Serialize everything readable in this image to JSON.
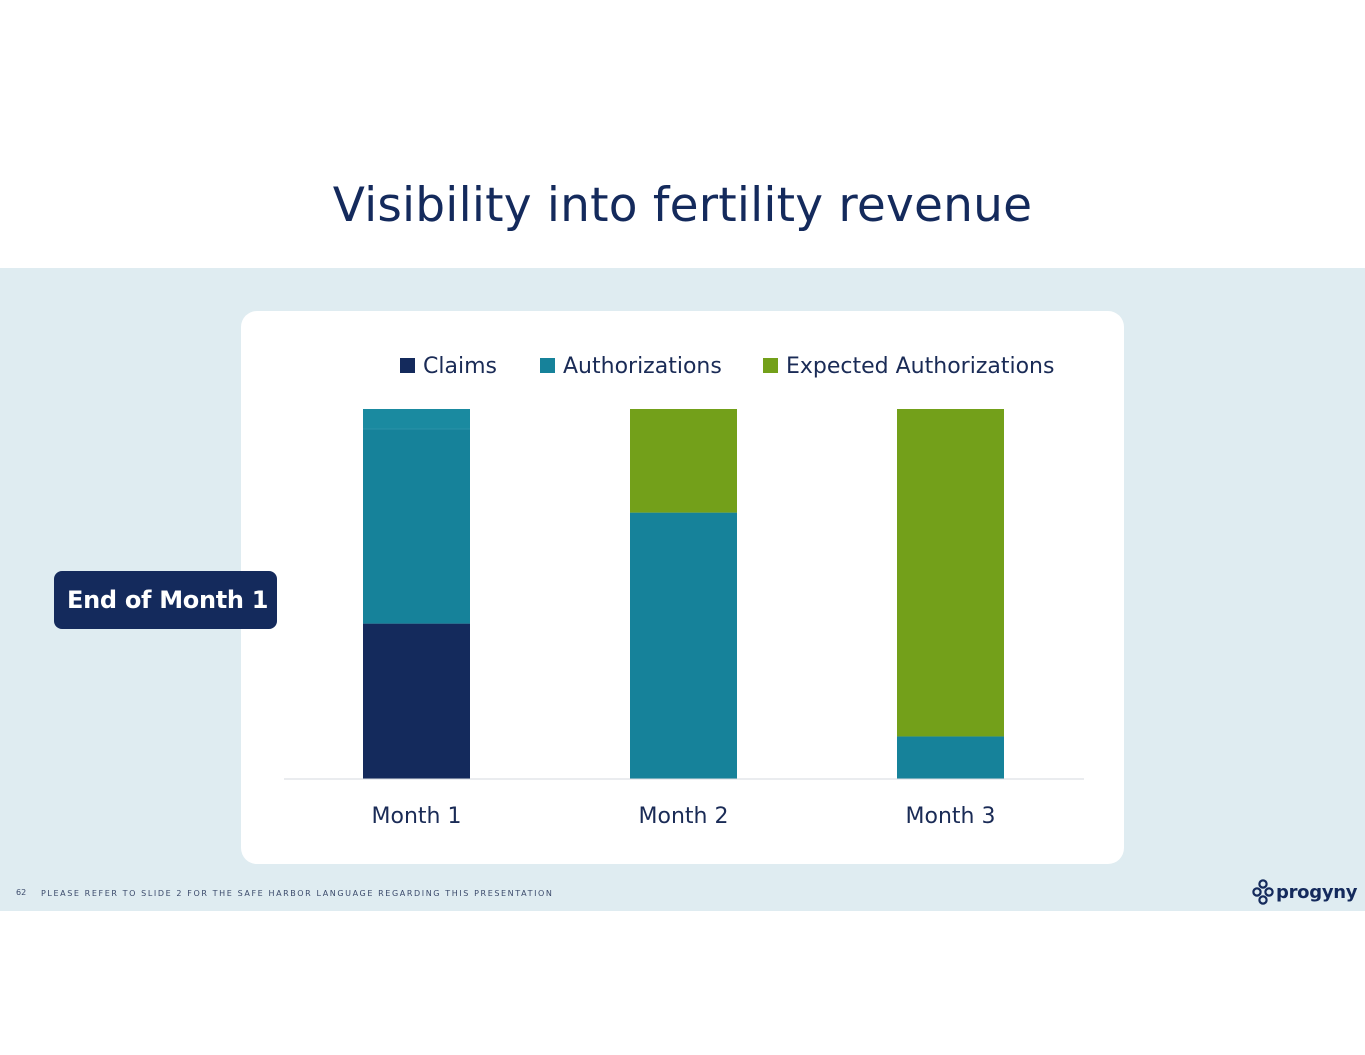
{
  "slide": {
    "title": "Visibility into fertility revenue",
    "callout": "End of Month 1",
    "page_number": "62",
    "footer_note": "PLEASE REFER TO SLIDE 2 FOR THE SAFE HARBOR LANGUAGE REGARDING THIS PRESENTATION",
    "logo_text": "progyny"
  },
  "colors": {
    "claims": "#142a5c",
    "authorizations": "#16829a",
    "authorizations_top": "#1a8aa0",
    "expected_authorizations": "#73a01a",
    "band": "#dfecf1",
    "axis": "#d6d9df"
  },
  "chart_data": {
    "type": "bar",
    "stacked": true,
    "title": "",
    "xlabel": "",
    "ylabel": "",
    "ylim": [
      0,
      100
    ],
    "legend_position": "top",
    "categories": [
      "Month 1",
      "Month 2",
      "Month 3"
    ],
    "series": [
      {
        "name": "Claims",
        "color": "#142a5c",
        "values": [
          42,
          0,
          0
        ]
      },
      {
        "name": "Authorizations",
        "color": "#16829a",
        "values": [
          58,
          72,
          11.5
        ]
      },
      {
        "name": "Expected Authorizations",
        "color": "#73a01a",
        "values": [
          0,
          28,
          88.5
        ]
      }
    ]
  }
}
